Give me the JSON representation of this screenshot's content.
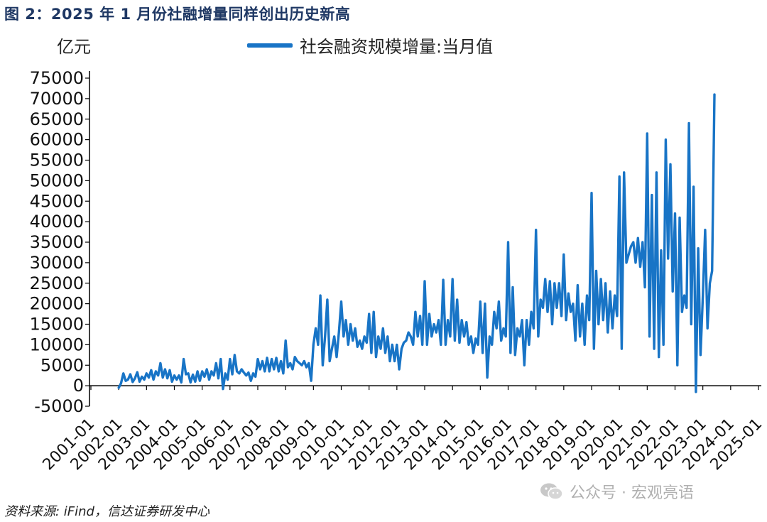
{
  "figure": {
    "title": "图 2：2025 年 1 月份社融增量同样创出历史新高",
    "source": "资料来源: iFind，信达证券研发中心",
    "watermark": "公众号 · 宏观亮语",
    "watermark_icon": "wechat-icon"
  },
  "chart_data": {
    "type": "line",
    "unit": "亿元",
    "title": "",
    "xlabel": "",
    "ylabel": "亿元",
    "legend": {
      "placement": "top-center",
      "entries": [
        "社会融资规模增量:当月值"
      ]
    },
    "grid": false,
    "ylim": [
      -5000,
      75000
    ],
    "yticks": [
      "75000",
      "70000",
      "65000",
      "60000",
      "55000",
      "50000",
      "45000",
      "40000",
      "35000",
      "30000",
      "25000",
      "20000",
      "15000",
      "10000",
      "5000",
      "0",
      "-5000"
    ],
    "xticks": [
      "2001-01",
      "2002-01",
      "2003-01",
      "2004-01",
      "2005-01",
      "2006-01",
      "2007-01",
      "2008-01",
      "2009-01",
      "2010-01",
      "2011-01",
      "2012-01",
      "2013-01",
      "2014-01",
      "2015-01",
      "2016-01",
      "2017-01",
      "2018-01",
      "2019-01",
      "2020-01",
      "2021-01",
      "2022-01",
      "2023-01",
      "2024-01",
      "2025-01"
    ],
    "series_color": "#1874c6",
    "series": [
      {
        "name": "社会融资规模增量:当月值",
        "start": "2002-01",
        "frequency": "monthly",
        "values": [
          -500,
          600,
          3000,
          1200,
          1500,
          2800,
          900,
          1800,
          3300,
          1000,
          2200,
          1500,
          3000,
          2000,
          3800,
          1500,
          3500,
          2500,
          5500,
          2000,
          4000,
          1800,
          3800,
          1000,
          2500,
          1500,
          2500,
          800,
          6500,
          2800,
          3000,
          800,
          2700,
          1000,
          3500,
          1200,
          3500,
          2200,
          4000,
          1500,
          3500,
          2500,
          5500,
          1800,
          6500,
          -800,
          3000,
          1500,
          6500,
          2800,
          7500,
          3500,
          3000,
          4000,
          3200,
          2500,
          3200,
          1200,
          3000,
          2200,
          6500,
          4000,
          6000,
          3500,
          6800,
          3500,
          6500,
          4000,
          6800,
          3500,
          6000,
          3000,
          11000,
          4500,
          5500,
          4000,
          7000,
          6000,
          5500,
          5000,
          6000,
          4500,
          5500,
          1200,
          10000,
          14000,
          10000,
          22000,
          5000,
          12000,
          21000,
          6000,
          9000,
          12000,
          7000,
          13000,
          20500,
          12000,
          16000,
          10000,
          15000,
          11000,
          14000,
          9500,
          11000,
          9000,
          12000,
          10500,
          17500,
          8000,
          18000,
          7000,
          12000,
          9000,
          14000,
          8000,
          12000,
          6000,
          10000,
          6000,
          10000,
          4000,
          9000,
          10500,
          11000,
          13000,
          12000,
          10000,
          18000,
          12000,
          17000,
          10000,
          25500,
          10000,
          17500,
          12000,
          15000,
          13000,
          16000,
          10000,
          25800,
          10000,
          16000,
          12000,
          26000,
          11000,
          21000,
          10500,
          16000,
          12000,
          15500,
          10000,
          12000,
          8000,
          11500,
          10000,
          20500,
          8000,
          20000,
          2000,
          12000,
          10000,
          18000,
          14000,
          20500,
          11000,
          14000,
          12000,
          35000,
          8000,
          24000,
          7500,
          14000,
          12000,
          16000,
          5000,
          16000,
          10000,
          18000,
          14000,
          38000,
          12000,
          21000,
          19000,
          26000,
          18000,
          25500,
          15000,
          25000,
          19000,
          25000,
          17000,
          32000,
          16000,
          22500,
          18000,
          20000,
          11000,
          24500,
          12000,
          20000,
          10000,
          22000,
          16000,
          47000,
          9000,
          28000,
          15000,
          26000,
          16000,
          25000,
          13000,
          23000,
          14000,
          22000,
          17000,
          51000,
          9000,
          52000,
          30000,
          32000,
          34000,
          35000,
          30000,
          36000,
          29000,
          35000,
          24000,
          61500,
          12000,
          46500,
          9000,
          52000,
          7000,
          33000,
          10000,
          60000,
          31000,
          54000,
          23000,
          42000,
          5000,
          41000,
          18000,
          22000,
          19000,
          64000,
          15000,
          48500,
          -1500,
          33500,
          7500,
          22000,
          38000,
          14000,
          25000,
          28000,
          71000
        ]
      }
    ]
  }
}
